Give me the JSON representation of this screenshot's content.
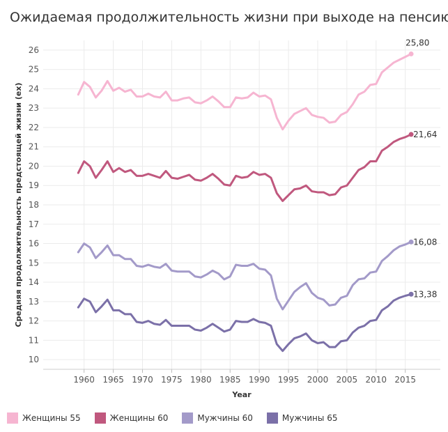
{
  "chart_data": {
    "type": "line",
    "title": "Ожидаемая продолжительность жизни при выходе на пенсию",
    "xlabel": "Year",
    "ylabel": "Средняя продолжительность предстоящей жизни (ex)",
    "xlim": [
      1953,
      2021
    ],
    "ylim": [
      9.5,
      26.5
    ],
    "x_ticks": [
      1960,
      1965,
      1970,
      1975,
      1980,
      1985,
      1990,
      1995,
      2000,
      2005,
      2010,
      2015
    ],
    "y_ticks": [
      10,
      11,
      12,
      13,
      14,
      15,
      16,
      17,
      18,
      19,
      20,
      21,
      22,
      23,
      24,
      25,
      26
    ],
    "grid": true,
    "legend": "bottom",
    "x": [
      1959,
      1960,
      1961,
      1962,
      1963,
      1964,
      1965,
      1966,
      1967,
      1968,
      1969,
      1970,
      1971,
      1972,
      1973,
      1974,
      1975,
      1976,
      1977,
      1978,
      1979,
      1980,
      1981,
      1982,
      1983,
      1984,
      1985,
      1986,
      1987,
      1988,
      1989,
      1990,
      1991,
      1992,
      1993,
      1994,
      1995,
      1996,
      1997,
      1998,
      1999,
      2000,
      2001,
      2002,
      2003,
      2004,
      2005,
      2006,
      2007,
      2008,
      2009,
      2010,
      2011,
      2012,
      2013,
      2014,
      2015,
      2016
    ],
    "series": [
      {
        "name": "Женщины 55",
        "color": "#f6b5d1",
        "end_label": "25,80",
        "values": [
          23.7,
          24.35,
          24.1,
          23.55,
          23.9,
          24.4,
          23.9,
          24.05,
          23.85,
          23.95,
          23.6,
          23.6,
          23.75,
          23.6,
          23.55,
          23.85,
          23.4,
          23.4,
          23.5,
          23.55,
          23.3,
          23.25,
          23.4,
          23.6,
          23.35,
          23.05,
          23.05,
          23.55,
          23.5,
          23.55,
          23.8,
          23.6,
          23.65,
          23.45,
          22.5,
          21.9,
          22.35,
          22.7,
          22.85,
          23.0,
          22.65,
          22.55,
          22.5,
          22.25,
          22.3,
          22.65,
          22.8,
          23.2,
          23.7,
          23.85,
          24.2,
          24.25,
          24.85,
          25.1,
          25.35,
          25.5,
          25.65,
          25.8
        ]
      },
      {
        "name": "Женщины 60",
        "color": "#c0587e",
        "end_label": "21,64",
        "values": [
          19.65,
          20.25,
          20.0,
          19.4,
          19.8,
          20.25,
          19.7,
          19.9,
          19.7,
          19.8,
          19.5,
          19.5,
          19.6,
          19.5,
          19.4,
          19.75,
          19.4,
          19.35,
          19.45,
          19.55,
          19.3,
          19.25,
          19.4,
          19.6,
          19.35,
          19.05,
          19.0,
          19.5,
          19.4,
          19.45,
          19.7,
          19.55,
          19.6,
          19.4,
          18.6,
          18.2,
          18.5,
          18.8,
          18.85,
          19.0,
          18.7,
          18.65,
          18.65,
          18.5,
          18.55,
          18.9,
          19.0,
          19.4,
          19.8,
          19.95,
          20.25,
          20.25,
          20.8,
          21.0,
          21.25,
          21.4,
          21.5,
          21.64
        ]
      },
      {
        "name": "Мужчины 60",
        "color": "#a39ac9",
        "end_label": "16,08",
        "values": [
          15.55,
          16.0,
          15.8,
          15.25,
          15.55,
          15.9,
          15.4,
          15.4,
          15.2,
          15.2,
          14.85,
          14.8,
          14.9,
          14.8,
          14.75,
          14.95,
          14.6,
          14.55,
          14.55,
          14.55,
          14.3,
          14.25,
          14.4,
          14.6,
          14.45,
          14.15,
          14.3,
          14.9,
          14.85,
          14.85,
          14.95,
          14.7,
          14.65,
          14.35,
          13.15,
          12.6,
          13.05,
          13.5,
          13.75,
          13.95,
          13.45,
          13.2,
          13.1,
          12.8,
          12.85,
          13.2,
          13.3,
          13.85,
          14.15,
          14.2,
          14.5,
          14.55,
          15.1,
          15.35,
          15.65,
          15.85,
          15.95,
          16.08
        ]
      },
      {
        "name": "Мужчины 65",
        "color": "#7b70a8",
        "end_label": "13,38",
        "values": [
          12.7,
          13.15,
          13.0,
          12.45,
          12.75,
          13.1,
          12.55,
          12.55,
          12.35,
          12.35,
          11.95,
          11.9,
          12.0,
          11.85,
          11.8,
          12.05,
          11.75,
          11.75,
          11.75,
          11.75,
          11.55,
          11.5,
          11.65,
          11.85,
          11.65,
          11.45,
          11.55,
          12.0,
          11.95,
          11.95,
          12.1,
          11.95,
          11.9,
          11.75,
          10.8,
          10.45,
          10.8,
          11.1,
          11.2,
          11.35,
          11.0,
          10.85,
          10.9,
          10.65,
          10.65,
          10.95,
          11.0,
          11.4,
          11.65,
          11.75,
          12.0,
          12.05,
          12.55,
          12.75,
          13.05,
          13.2,
          13.3,
          13.38
        ]
      }
    ]
  }
}
